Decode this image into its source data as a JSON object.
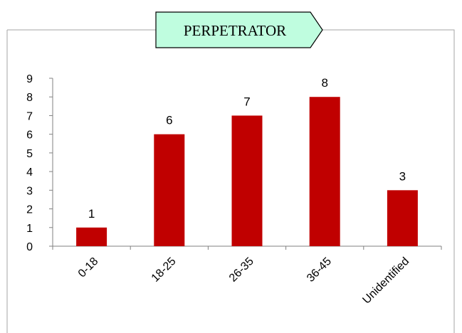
{
  "chart_data": {
    "type": "bar",
    "title": "PERPETRATOR",
    "categories": [
      "0-18",
      "18-25",
      "26-35",
      "36-45",
      "Unidentified"
    ],
    "values": [
      1,
      6,
      7,
      8,
      3
    ],
    "ylim": [
      0,
      9
    ],
    "yticks": [
      "0",
      "1",
      "2",
      "3",
      "4",
      "5",
      "6",
      "7",
      "8",
      "9"
    ],
    "xlabel": "",
    "ylabel": "",
    "grid": false,
    "legend": "none",
    "data_labels": [
      "1",
      "6",
      "7",
      "8",
      "3"
    ],
    "colors": {
      "bar": "#C00000",
      "title_box_fill": "#BFFDDF",
      "title_box_stroke": "#000000",
      "axis": "#808080",
      "border": "#A6A6A6"
    }
  }
}
